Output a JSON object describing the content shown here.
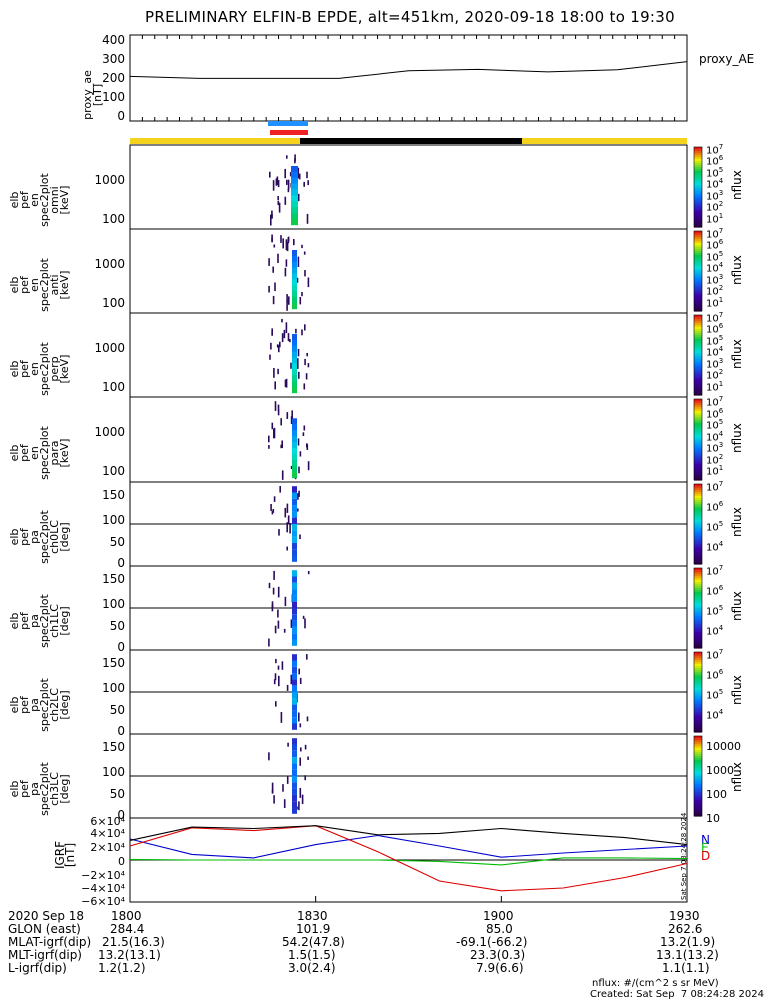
{
  "title": "PRELIMINARY ELFIN-B EPDE, alt=451km, 2020-09-18 18:00 to 19:30",
  "chart_data": [
    {
      "type": "line",
      "name": "proxy_ae",
      "ylabel": [
        "proxy_ae",
        "[nT]"
      ],
      "legend": "proxy_AE",
      "yticks": [
        "400",
        "300",
        "200",
        "100",
        "0"
      ],
      "ylim": [
        0,
        420
      ],
      "x": [
        "18:00",
        "18:15",
        "18:30",
        "18:45",
        "18:55",
        "19:00",
        "19:10",
        "19:20",
        "19:30"
      ],
      "values": [
        218,
        208,
        208,
        208,
        245,
        252,
        240,
        250,
        290
      ]
    },
    {
      "type": "heatmap",
      "name": "spec2plot_omni",
      "ylabel": [
        "elb",
        "pef",
        "en",
        "spec2plot",
        "omni",
        "[keV]"
      ],
      "yticks": [
        "1000",
        "100"
      ],
      "zlabel": "nflux",
      "cbticks": [
        "10",
        "10",
        "10",
        "10",
        "10",
        "10",
        "10",
        "10",
        "10",
        "10",
        "10"
      ],
      "cbexp": [
        "7",
        "6",
        "5",
        "4",
        "3",
        "2",
        "1",
        "",
        "",
        "",
        ""
      ]
    },
    {
      "type": "heatmap",
      "name": "spec2plot_anti",
      "ylabel": [
        "elb",
        "pef",
        "en",
        "spec2plot",
        "anti",
        "[keV]"
      ],
      "yticks": [
        "1000",
        "100"
      ],
      "zlabel": "nflux"
    },
    {
      "type": "heatmap",
      "name": "spec2plot_perp",
      "ylabel": [
        "elb",
        "pef",
        "en",
        "spec2plot",
        "perp",
        "[keV]"
      ],
      "yticks": [
        "1000",
        "100"
      ],
      "zlabel": "nflux"
    },
    {
      "type": "heatmap",
      "name": "spec2plot_para",
      "ylabel": [
        "elb",
        "pef",
        "en",
        "spec2plot",
        "para",
        "[keV]"
      ],
      "yticks": [
        "1000",
        "100"
      ],
      "zlabel": "nflux"
    },
    {
      "type": "heatmap",
      "name": "spec2plot_ch0LC",
      "ylabel": [
        "elb",
        "pef",
        "pa",
        "spec2plot",
        "ch0LC",
        "[deg]"
      ],
      "yticks": [
        "150",
        "100",
        "50",
        "0"
      ],
      "zlabel": "nflux"
    },
    {
      "type": "heatmap",
      "name": "spec2plot_ch1LC",
      "ylabel": [
        "elb",
        "pef",
        "pa",
        "spec2plot",
        "ch1LC",
        "[deg]"
      ],
      "yticks": [
        "150",
        "100",
        "50",
        "0"
      ],
      "zlabel": "nflux"
    },
    {
      "type": "heatmap",
      "name": "spec2plot_ch2LC",
      "ylabel": [
        "elb",
        "pef",
        "pa",
        "spec2plot",
        "ch2LC",
        "[deg]"
      ],
      "yticks": [
        "150",
        "100",
        "50",
        "0"
      ],
      "zlabel": "nflux"
    },
    {
      "type": "heatmap",
      "name": "spec2plot_ch3LC",
      "ylabel": [
        "elb",
        "pef",
        "pa",
        "spec2plot",
        "ch3LC",
        "[deg]"
      ],
      "yticks": [
        "150",
        "100",
        "50",
        "0"
      ],
      "zlabel": "nflux",
      "cbticks": [
        "10000",
        "1000",
        "100",
        "10"
      ]
    },
    {
      "type": "line",
      "name": "IGRF",
      "ylabel": [
        "IGRF",
        "[nT]"
      ],
      "ylim": [
        -60000,
        60000
      ],
      "yticks": [
        "6×10⁴",
        "4×10⁴",
        "2×10⁴",
        "0",
        "−2×10⁴",
        "−4×10⁴",
        "−6×10⁴"
      ],
      "x": [
        "18:00",
        "18:10",
        "18:20",
        "18:30",
        "18:40",
        "18:50",
        "19:00",
        "19:10",
        "19:20",
        "19:30"
      ],
      "series": [
        {
          "name": "N",
          "color": "#0000cc",
          "values": [
            30000,
            8000,
            3000,
            22000,
            35000,
            20000,
            4000,
            10000,
            15000,
            20000
          ]
        },
        {
          "name": "E",
          "color": "#00bb00",
          "values": [
            800,
            0,
            0,
            0,
            0,
            -2000,
            -7000,
            3000,
            3000,
            2000
          ]
        },
        {
          "name": "D",
          "color": "#dd0000",
          "values": [
            20000,
            46000,
            42000,
            49000,
            12000,
            -30000,
            -44000,
            -40000,
            -25000,
            -5000
          ]
        },
        {
          "name": "total",
          "color": "#000000",
          "values": [
            28000,
            47000,
            45000,
            49000,
            36000,
            38000,
            45000,
            38000,
            32000,
            22000
          ]
        }
      ],
      "legend": [
        "N",
        "E",
        "D"
      ]
    }
  ],
  "xaxis": {
    "ticks": [
      "1800",
      "1830",
      "1900",
      "1930"
    ]
  },
  "ephemeris": {
    "rows": [
      {
        "label": "2020 Sep 18",
        "values": [
          "1800",
          "1830",
          "1900",
          "1930"
        ]
      },
      {
        "label": "GLON (east)",
        "values": [
          "284.4",
          "101.9",
          "85.0",
          "262.6"
        ]
      },
      {
        "label": "MLAT-igrf(dip)",
        "values": [
          "21.5(16.3)",
          "54.2(47.8)",
          "-69.1(-66.2)",
          "13.2(1.9)"
        ]
      },
      {
        "label": "MLT-igrf(dip)",
        "values": [
          "13.2(13.1)",
          "1.5(1.5)",
          "23.3(0.3)",
          "13.1(13.2)"
        ]
      },
      {
        "label": "L-igrf(dip)",
        "values": [
          "1.2(1.2)",
          "3.0(2.4)",
          "7.9(6.6)",
          "1.1(1.1)"
        ]
      }
    ]
  },
  "notes": {
    "units": "nflux: #/(cm^2 s sr MeV)",
    "created": "Created: Sat Sep  7 08:24:28 2024",
    "side_stamp": "Sat Sep  7 08:24:28 2024"
  },
  "colors": {
    "bar_yellow": "#f5d21e",
    "bar_black": "#000000",
    "bar_blue": "#1e90ff",
    "bar_red": "#ee2222"
  }
}
